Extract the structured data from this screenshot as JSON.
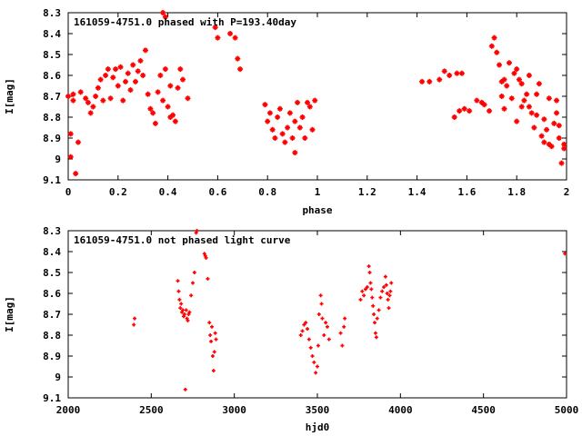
{
  "chart_data": [
    {
      "type": "scatter",
      "title": "161059-4751.0 phased with P=193.40day",
      "xlabel": "phase",
      "ylabel": "I[mag]",
      "xlim": [
        0,
        2
      ],
      "ylim": [
        8.3,
        9.1
      ],
      "y_inverted": true,
      "x_ticks": [
        "0",
        "0.2",
        "0.4",
        "0.6",
        "0.8",
        "1",
        "1.2",
        "1.4",
        "1.6",
        "1.8",
        "2"
      ],
      "y_ticks": [
        "8.3",
        "8.4",
        "8.5",
        "8.6",
        "8.7",
        "8.8",
        "8.9",
        "9",
        "9.1"
      ],
      "marker_color": "#ff0000",
      "grid": false,
      "series": [
        {
          "points": [
            [
              0.0,
              8.7
            ],
            [
              0.01,
              8.88
            ],
            [
              0.01,
              8.99
            ],
            [
              0.02,
              8.72
            ],
            [
              0.02,
              8.69
            ],
            [
              0.03,
              9.07
            ],
            [
              0.04,
              8.92
            ],
            [
              0.05,
              8.68
            ],
            [
              0.07,
              8.71
            ],
            [
              0.08,
              8.73
            ],
            [
              0.09,
              8.78
            ],
            [
              0.1,
              8.75
            ],
            [
              0.11,
              8.7
            ],
            [
              0.12,
              8.66
            ],
            [
              0.13,
              8.62
            ],
            [
              0.14,
              8.72
            ],
            [
              0.15,
              8.6
            ],
            [
              0.16,
              8.57
            ],
            [
              0.17,
              8.71
            ],
            [
              0.18,
              8.61
            ],
            [
              0.19,
              8.57
            ],
            [
              0.2,
              8.65
            ],
            [
              0.21,
              8.56
            ],
            [
              0.22,
              8.72
            ],
            [
              0.23,
              8.63
            ],
            [
              0.24,
              8.59
            ],
            [
              0.25,
              8.67
            ],
            [
              0.26,
              8.55
            ],
            [
              0.27,
              8.63
            ],
            [
              0.28,
              8.58
            ],
            [
              0.29,
              8.53
            ],
            [
              0.3,
              8.6
            ],
            [
              0.31,
              8.48
            ],
            [
              0.32,
              8.69
            ],
            [
              0.33,
              8.76
            ],
            [
              0.34,
              8.78
            ],
            [
              0.35,
              8.83
            ],
            [
              0.36,
              8.68
            ],
            [
              0.37,
              8.6
            ],
            [
              0.38,
              8.72
            ],
            [
              0.39,
              8.57
            ],
            [
              0.4,
              8.75
            ],
            [
              0.41,
              8.65
            ],
            [
              0.41,
              8.8
            ],
            [
              0.42,
              8.79
            ],
            [
              0.43,
              8.82
            ],
            [
              0.44,
              8.66
            ],
            [
              0.45,
              8.57
            ],
            [
              0.46,
              8.62
            ],
            [
              0.48,
              8.71
            ],
            [
              0.38,
              8.3
            ],
            [
              0.39,
              8.32
            ],
            [
              0.59,
              8.37
            ],
            [
              0.6,
              8.42
            ],
            [
              0.65,
              8.4
            ],
            [
              0.67,
              8.42
            ],
            [
              0.68,
              8.52
            ],
            [
              0.69,
              8.57
            ],
            [
              0.79,
              8.74
            ],
            [
              0.8,
              8.82
            ],
            [
              0.81,
              8.78
            ],
            [
              0.82,
              8.86
            ],
            [
              0.83,
              8.9
            ],
            [
              0.84,
              8.8
            ],
            [
              0.85,
              8.76
            ],
            [
              0.86,
              8.88
            ],
            [
              0.87,
              8.92
            ],
            [
              0.88,
              8.85
            ],
            [
              0.89,
              8.78
            ],
            [
              0.9,
              8.9
            ],
            [
              0.91,
              8.82
            ],
            [
              0.91,
              8.97
            ],
            [
              0.92,
              8.73
            ],
            [
              0.93,
              8.85
            ],
            [
              0.94,
              8.8
            ],
            [
              0.95,
              8.9
            ],
            [
              0.96,
              8.73
            ],
            [
              0.97,
              8.75
            ],
            [
              0.98,
              8.86
            ],
            [
              0.99,
              8.72
            ],
            [
              1.42,
              8.63
            ],
            [
              1.45,
              8.63
            ],
            [
              1.49,
              8.62
            ],
            [
              1.51,
              8.58
            ],
            [
              1.53,
              8.6
            ],
            [
              1.55,
              8.8
            ],
            [
              1.57,
              8.77
            ],
            [
              1.59,
              8.76
            ],
            [
              1.61,
              8.77
            ],
            [
              1.64,
              8.72
            ],
            [
              1.67,
              8.74
            ],
            [
              1.69,
              8.77
            ],
            [
              1.7,
              8.46
            ],
            [
              1.71,
              8.42
            ],
            [
              1.72,
              8.49
            ],
            [
              1.73,
              8.55
            ],
            [
              1.74,
              8.63
            ],
            [
              1.75,
              8.62
            ],
            [
              1.76,
              8.65
            ],
            [
              1.77,
              8.54
            ],
            [
              1.78,
              8.71
            ],
            [
              1.79,
              8.59
            ],
            [
              1.8,
              8.57
            ],
            [
              1.81,
              8.62
            ],
            [
              1.82,
              8.64
            ],
            [
              1.83,
              8.72
            ],
            [
              1.84,
              8.69
            ],
            [
              1.85,
              8.75
            ],
            [
              1.86,
              8.78
            ],
            [
              1.87,
              8.85
            ],
            [
              1.88,
              8.79
            ],
            [
              1.89,
              8.64
            ],
            [
              1.9,
              8.89
            ],
            [
              1.91,
              8.81
            ],
            [
              1.92,
              8.86
            ],
            [
              1.93,
              8.93
            ],
            [
              1.94,
              8.94
            ],
            [
              1.95,
              8.83
            ],
            [
              1.96,
              8.78
            ],
            [
              1.97,
              8.84
            ],
            [
              1.98,
              9.02
            ],
            [
              1.99,
              8.95
            ],
            [
              1.99,
              8.93
            ],
            [
              1.56,
              8.59
            ],
            [
              1.58,
              8.59
            ],
            [
              1.66,
              8.73
            ],
            [
              1.74,
              8.7
            ],
            [
              1.82,
              8.75
            ],
            [
              1.88,
              8.69
            ],
            [
              1.96,
              8.72
            ],
            [
              1.93,
              8.71
            ],
            [
              1.97,
              8.9
            ],
            [
              1.8,
              8.82
            ],
            [
              1.85,
              8.6
            ],
            [
              1.91,
              8.92
            ],
            [
              1.75,
              8.76
            ]
          ]
        }
      ]
    },
    {
      "type": "scatter",
      "title": "161059-4751.0 not phased light curve",
      "xlabel": "hjd0",
      "ylabel": "I[mag]",
      "xlim": [
        2000,
        5000
      ],
      "ylim": [
        8.3,
        9.1
      ],
      "y_inverted": true,
      "x_ticks": [
        "2000",
        "2500",
        "3000",
        "3500",
        "4000",
        "4500",
        "5000"
      ],
      "y_ticks": [
        "8.3",
        "8.4",
        "8.5",
        "8.6",
        "8.7",
        "8.8",
        "8.9",
        "9",
        "9.1"
      ],
      "marker_color": "#ff0000",
      "grid": false,
      "series": [
        {
          "points": [
            [
              2395,
              8.75
            ],
            [
              2400,
              8.72
            ],
            [
              2660,
              8.54
            ],
            [
              2665,
              8.59
            ],
            [
              2670,
              8.63
            ],
            [
              2675,
              8.67
            ],
            [
              2680,
              8.65
            ],
            [
              2685,
              8.69
            ],
            [
              2690,
              8.68
            ],
            [
              2695,
              8.71
            ],
            [
              2700,
              8.7
            ],
            [
              2705,
              9.06
            ],
            [
              2710,
              8.68
            ],
            [
              2715,
              8.72
            ],
            [
              2720,
              8.73
            ],
            [
              2725,
              8.7
            ],
            [
              2730,
              8.69
            ],
            [
              2740,
              8.61
            ],
            [
              2750,
              8.55
            ],
            [
              2760,
              8.5
            ],
            [
              2770,
              8.31
            ],
            [
              2775,
              8.3
            ],
            [
              2820,
              8.41
            ],
            [
              2825,
              8.42
            ],
            [
              2830,
              8.43
            ],
            [
              2840,
              8.53
            ],
            [
              2850,
              8.74
            ],
            [
              2855,
              8.8
            ],
            [
              2860,
              8.83
            ],
            [
              2865,
              8.76
            ],
            [
              2870,
              8.9
            ],
            [
              2875,
              8.97
            ],
            [
              2880,
              8.88
            ],
            [
              2885,
              8.79
            ],
            [
              2890,
              8.82
            ],
            [
              3400,
              8.8
            ],
            [
              3410,
              8.78
            ],
            [
              3420,
              8.75
            ],
            [
              3430,
              8.74
            ],
            [
              3440,
              8.77
            ],
            [
              3450,
              8.82
            ],
            [
              3460,
              8.86
            ],
            [
              3470,
              8.9
            ],
            [
              3480,
              8.93
            ],
            [
              3490,
              8.98
            ],
            [
              3500,
              8.95
            ],
            [
              3505,
              8.85
            ],
            [
              3510,
              8.7
            ],
            [
              3520,
              8.61
            ],
            [
              3525,
              8.65
            ],
            [
              3530,
              8.72
            ],
            [
              3540,
              8.8
            ],
            [
              3550,
              8.74
            ],
            [
              3560,
              8.76
            ],
            [
              3570,
              8.82
            ],
            [
              3640,
              8.79
            ],
            [
              3650,
              8.85
            ],
            [
              3660,
              8.76
            ],
            [
              3665,
              8.72
            ],
            [
              3760,
              8.63
            ],
            [
              3770,
              8.59
            ],
            [
              3780,
              8.61
            ],
            [
              3790,
              8.58
            ],
            [
              3800,
              8.57
            ],
            [
              3810,
              8.47
            ],
            [
              3815,
              8.5
            ],
            [
              3820,
              8.55
            ],
            [
              3825,
              8.58
            ],
            [
              3830,
              8.62
            ],
            [
              3835,
              8.66
            ],
            [
              3840,
              8.7
            ],
            [
              3845,
              8.74
            ],
            [
              3850,
              8.79
            ],
            [
              3855,
              8.81
            ],
            [
              3860,
              8.72
            ],
            [
              3870,
              8.68
            ],
            [
              3880,
              8.62
            ],
            [
              3890,
              8.59
            ],
            [
              3900,
              8.57
            ],
            [
              3910,
              8.52
            ],
            [
              3915,
              8.56
            ],
            [
              3920,
              8.6
            ],
            [
              3925,
              8.63
            ],
            [
              3930,
              8.67
            ],
            [
              3935,
              8.61
            ],
            [
              3940,
              8.59
            ],
            [
              3945,
              8.55
            ],
            [
              4990,
              8.41
            ]
          ]
        }
      ]
    }
  ]
}
